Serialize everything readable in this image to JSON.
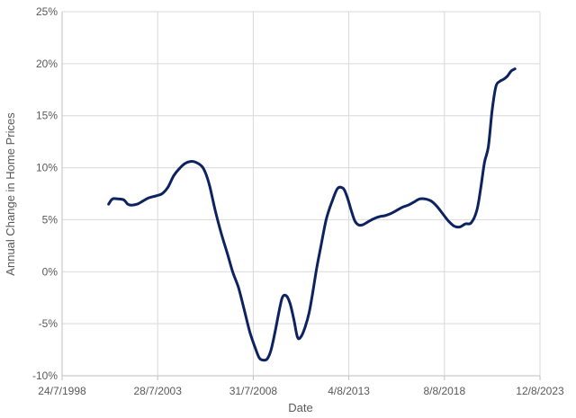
{
  "chart_data": {
    "type": "line",
    "title": "",
    "xlabel": "Date",
    "ylabel": "Annual Change in Home Prices",
    "x_tick_labels": [
      "24/7/1998",
      "28/7/2003",
      "31/7/2008",
      "4/8/2013",
      "8/8/2018",
      "12/8/2023"
    ],
    "x_ticks_year": [
      1998.56,
      2003.57,
      2008.58,
      2013.59,
      2018.6,
      2023.61
    ],
    "xlim_year": [
      1998.56,
      2023.61
    ],
    "y_tick_labels": [
      "-10%",
      "-5%",
      "0%",
      "5%",
      "10%",
      "15%",
      "20%",
      "25%"
    ],
    "y_ticks": [
      -10,
      -5,
      0,
      5,
      10,
      15,
      20,
      25
    ],
    "ylim": [
      -10,
      25
    ],
    "grid": true,
    "color": "#0d2260",
    "series": [
      {
        "x": [
          2001.0,
          2001.2,
          2001.5,
          2001.8,
          2002.0,
          2002.2,
          2002.5,
          2002.8,
          2003.1,
          2003.5,
          2003.8,
          2004.1,
          2004.4,
          2004.7,
          2005.0,
          2005.3,
          2005.6,
          2005.9,
          2006.1,
          2006.3,
          2006.6,
          2006.9,
          2007.2,
          2007.5,
          2007.8,
          2008.1,
          2008.4,
          2008.7,
          2008.9,
          2009.1,
          2009.3,
          2009.5,
          2009.7,
          2009.9,
          2010.1,
          2010.3,
          2010.5,
          2010.7,
          2010.9,
          2011.1,
          2011.3,
          2011.5,
          2011.7,
          2011.9,
          2012.1,
          2012.4,
          2012.7,
          2013.0,
          2013.3,
          2013.5,
          2013.7,
          2013.9,
          2014.1,
          2014.3,
          2014.6,
          2014.9,
          2015.2,
          2015.5,
          2015.8,
          2016.1,
          2016.4,
          2016.7,
          2017.0,
          2017.3,
          2017.6,
          2017.9,
          2018.2,
          2018.5,
          2018.8,
          2019.1,
          2019.4,
          2019.7,
          2020.0,
          2020.3,
          2020.5,
          2020.7,
          2020.9,
          2021.1,
          2021.3,
          2021.5,
          2021.7,
          2021.9,
          2022.1,
          2022.3
        ],
        "values": [
          6.5,
          7.0,
          7.0,
          6.9,
          6.5,
          6.4,
          6.5,
          6.8,
          7.1,
          7.3,
          7.5,
          8.1,
          9.2,
          9.9,
          10.4,
          10.6,
          10.5,
          10.1,
          9.4,
          8.2,
          5.8,
          3.7,
          1.9,
          0.0,
          -1.5,
          -3.6,
          -5.8,
          -7.4,
          -8.3,
          -8.5,
          -8.4,
          -7.6,
          -6.0,
          -4.1,
          -2.5,
          -2.3,
          -3.0,
          -4.5,
          -6.3,
          -6.2,
          -5.3,
          -4.0,
          -2.0,
          0.3,
          2.2,
          5.0,
          6.7,
          8.0,
          8.0,
          7.2,
          6.0,
          4.9,
          4.5,
          4.5,
          4.8,
          5.1,
          5.3,
          5.4,
          5.6,
          5.9,
          6.2,
          6.4,
          6.7,
          7.0,
          7.0,
          6.8,
          6.3,
          5.6,
          4.9,
          4.4,
          4.3,
          4.6,
          4.7,
          5.9,
          8.0,
          10.5,
          12.0,
          15.5,
          17.8,
          18.3,
          18.5,
          18.8,
          19.3,
          19.5
        ]
      }
    ]
  }
}
